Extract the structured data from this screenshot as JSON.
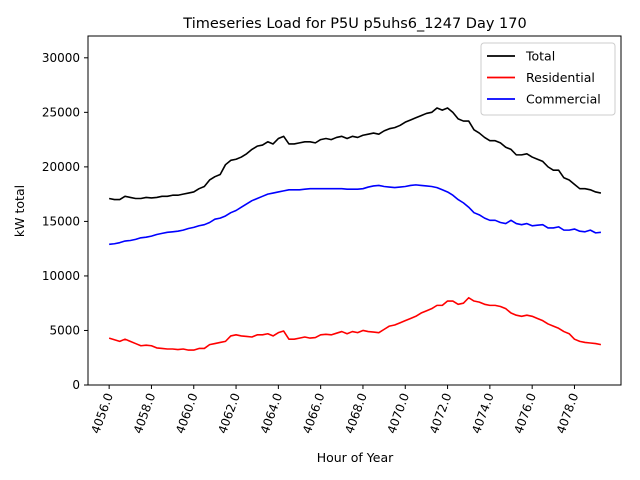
{
  "chart_data": {
    "type": "line",
    "title": "Timeseries Load for P5U p5uhs6_1247  Day 170",
    "xlabel": "Hour of Year",
    "ylabel": "kW total",
    "xlim": [
      4055.0,
      4080.2
    ],
    "ylim": [
      0,
      32000
    ],
    "x_ticks": [
      4056,
      4058,
      4060,
      4062,
      4064,
      4066,
      4068,
      4070,
      4072,
      4074,
      4076,
      4078
    ],
    "x_tick_labels": [
      "4056.0",
      "4058.0",
      "4060.0",
      "4062.0",
      "4064.0",
      "4066.0",
      "4068.0",
      "4070.0",
      "4072.0",
      "4074.0",
      "4076.0",
      "4078.0"
    ],
    "y_ticks": [
      0,
      5000,
      10000,
      15000,
      20000,
      25000,
      30000
    ],
    "y_tick_labels": [
      "0",
      "5000",
      "10000",
      "15000",
      "20000",
      "25000",
      "30000"
    ],
    "legend_position": "top-right",
    "grid": false,
    "x_start": 4056.0,
    "x_step": 0.25,
    "series": [
      {
        "name": "Total",
        "color": "#000000",
        "values": [
          17100,
          17000,
          17000,
          17300,
          17200,
          17100,
          17100,
          17200,
          17150,
          17200,
          17300,
          17300,
          17400,
          17400,
          17500,
          17600,
          17700,
          18000,
          18200,
          18800,
          19100,
          19300,
          20200,
          20600,
          20700,
          20900,
          21200,
          21600,
          21900,
          22000,
          22300,
          22100,
          22600,
          22800,
          22100,
          22100,
          22200,
          22300,
          22300,
          22200,
          22500,
          22600,
          22500,
          22700,
          22800,
          22600,
          22800,
          22700,
          22900,
          23000,
          23100,
          23000,
          23300,
          23500,
          23600,
          23800,
          24100,
          24300,
          24500,
          24700,
          24900,
          25000,
          25400,
          25200,
          25400,
          25000,
          24400,
          24200,
          24200,
          23400,
          23100,
          22700,
          22400,
          22400,
          22200,
          21800,
          21600,
          21100,
          21100,
          21200,
          20900,
          20700,
          20500,
          20000,
          19700,
          19700,
          19000,
          18800,
          18400,
          18000,
          18000,
          17900,
          17700,
          17600
        ]
      },
      {
        "name": "Residential",
        "color": "#ff0000",
        "values": [
          4300,
          4150,
          4000,
          4200,
          4000,
          3800,
          3600,
          3650,
          3600,
          3400,
          3350,
          3300,
          3300,
          3250,
          3300,
          3200,
          3200,
          3350,
          3350,
          3700,
          3800,
          3900,
          4000,
          4500,
          4600,
          4500,
          4450,
          4400,
          4600,
          4600,
          4700,
          4500,
          4800,
          4950,
          4200,
          4200,
          4300,
          4400,
          4300,
          4350,
          4600,
          4650,
          4600,
          4750,
          4900,
          4700,
          4900,
          4800,
          5000,
          4900,
          4850,
          4800,
          5100,
          5400,
          5500,
          5700,
          5900,
          6100,
          6300,
          6600,
          6800,
          7000,
          7300,
          7300,
          7700,
          7700,
          7400,
          7500,
          8000,
          7700,
          7600,
          7400,
          7300,
          7300,
          7200,
          7000,
          6600,
          6400,
          6300,
          6400,
          6300,
          6100,
          5900,
          5600,
          5400,
          5200,
          4900,
          4700,
          4200,
          4000,
          3900,
          3850,
          3800,
          3700
        ]
      },
      {
        "name": "Commercial",
        "color": "#0000ff",
        "values": [
          12900,
          12950,
          13050,
          13200,
          13250,
          13350,
          13500,
          13550,
          13650,
          13800,
          13900,
          14000,
          14050,
          14100,
          14200,
          14350,
          14450,
          14600,
          14700,
          14900,
          15200,
          15300,
          15500,
          15800,
          16000,
          16300,
          16600,
          16900,
          17100,
          17300,
          17500,
          17600,
          17700,
          17800,
          17900,
          17900,
          17900,
          17950,
          18000,
          18000,
          18000,
          18000,
          18000,
          18000,
          18000,
          17950,
          17950,
          17950,
          18000,
          18150,
          18250,
          18300,
          18200,
          18150,
          18100,
          18150,
          18200,
          18300,
          18350,
          18300,
          18250,
          18200,
          18100,
          17900,
          17700,
          17400,
          17000,
          16700,
          16300,
          15800,
          15600,
          15300,
          15100,
          15100,
          14900,
          14800,
          15100,
          14800,
          14700,
          14800,
          14600,
          14650,
          14700,
          14400,
          14400,
          14500,
          14200,
          14200,
          14300,
          14100,
          14050,
          14200,
          13950,
          14000
        ]
      }
    ]
  }
}
